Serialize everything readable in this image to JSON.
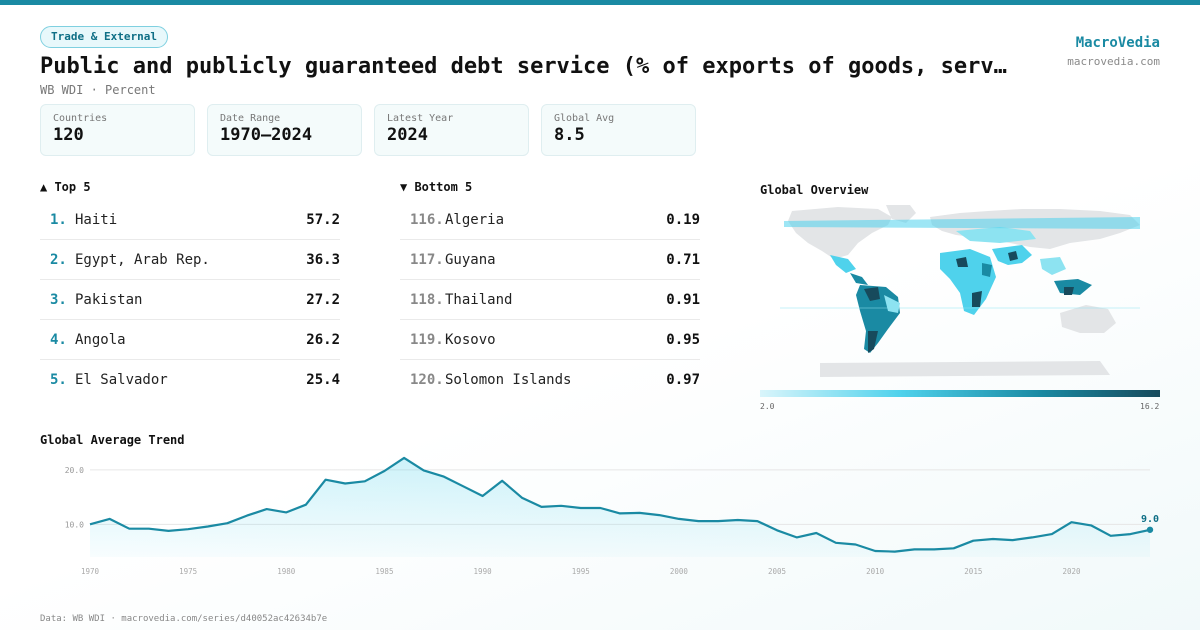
{
  "category": "Trade & External",
  "title": "Public and publicly guaranteed debt service (% of exports of goods, serv…",
  "subtitle": "WB WDI · Percent",
  "brand": {
    "name": "MacroVedia",
    "url": "macrovedia.com"
  },
  "stats": [
    {
      "label": "Countries",
      "value": "120"
    },
    {
      "label": "Date Range",
      "value": "1970–2024"
    },
    {
      "label": "Latest Year",
      "value": "2024"
    },
    {
      "label": "Global Avg",
      "value": "8.5"
    }
  ],
  "top": {
    "heading": "▲ Top 5",
    "items": [
      {
        "rank": "1.",
        "name": "Haiti",
        "value": "57.2"
      },
      {
        "rank": "2.",
        "name": "Egypt, Arab Rep.",
        "value": "36.3"
      },
      {
        "rank": "3.",
        "name": "Pakistan",
        "value": "27.2"
      },
      {
        "rank": "4.",
        "name": "Angola",
        "value": "26.2"
      },
      {
        "rank": "5.",
        "name": "El Salvador",
        "value": "25.4"
      }
    ]
  },
  "bottom": {
    "heading": "▼ Bottom 5",
    "items": [
      {
        "rank": "116.",
        "name": "Algeria",
        "value": "0.19"
      },
      {
        "rank": "117.",
        "name": "Guyana",
        "value": "0.71"
      },
      {
        "rank": "118.",
        "name": "Thailand",
        "value": "0.91"
      },
      {
        "rank": "119.",
        "name": "Kosovo",
        "value": "0.95"
      },
      {
        "rank": "120.",
        "name": "Solomon Islands",
        "value": "0.97"
      }
    ]
  },
  "map": {
    "title": "Global Overview",
    "scale_min": "2.0",
    "scale_max": "16.2",
    "colors": {
      "low": "#d9f5fb",
      "mid": "#1a8aa3",
      "high": "#174a5c",
      "nodata": "#e3e5e7"
    }
  },
  "trend_title": "Global Average Trend",
  "chart_data": {
    "type": "area",
    "title": "Global Average Trend",
    "xlabel": "",
    "ylabel": "",
    "ylim": [
      4,
      22
    ],
    "xlim": [
      1970,
      2024
    ],
    "yticks": [
      10,
      20
    ],
    "ytick_labels": [
      "10.0",
      "20.0"
    ],
    "xticks": [
      1970,
      1975,
      1980,
      1985,
      1990,
      1995,
      2000,
      2005,
      2010,
      2015,
      2020
    ],
    "end_label": "9.0",
    "color": "#1a8aa3",
    "x": [
      1970,
      1971,
      1972,
      1973,
      1974,
      1975,
      1976,
      1977,
      1978,
      1979,
      1980,
      1981,
      1982,
      1983,
      1984,
      1985,
      1986,
      1987,
      1988,
      1989,
      1990,
      1991,
      1992,
      1993,
      1994,
      1995,
      1996,
      1997,
      1998,
      1999,
      2000,
      2001,
      2002,
      2003,
      2004,
      2005,
      2006,
      2007,
      2008,
      2009,
      2010,
      2011,
      2012,
      2013,
      2014,
      2015,
      2016,
      2017,
      2018,
      2019,
      2020,
      2021,
      2022,
      2023,
      2024
    ],
    "y": [
      10.0,
      11.0,
      9.2,
      9.2,
      8.8,
      9.1,
      9.6,
      10.2,
      11.6,
      12.8,
      12.2,
      13.6,
      18.2,
      17.5,
      17.9,
      19.8,
      22.2,
      19.9,
      18.8,
      17.0,
      15.2,
      18.0,
      14.9,
      13.2,
      13.4,
      13.0,
      13.0,
      12.0,
      12.1,
      11.7,
      11.0,
      10.6,
      10.6,
      10.8,
      10.6,
      8.9,
      7.6,
      8.4,
      6.6,
      6.3,
      5.1,
      5.0,
      5.4,
      5.4,
      5.6,
      7.0,
      7.3,
      7.1,
      7.6,
      8.2,
      10.4,
      9.8,
      7.9,
      8.2,
      9.0
    ]
  },
  "footer": "Data: WB WDI · macrovedia.com/series/d40052ac42634b7e"
}
